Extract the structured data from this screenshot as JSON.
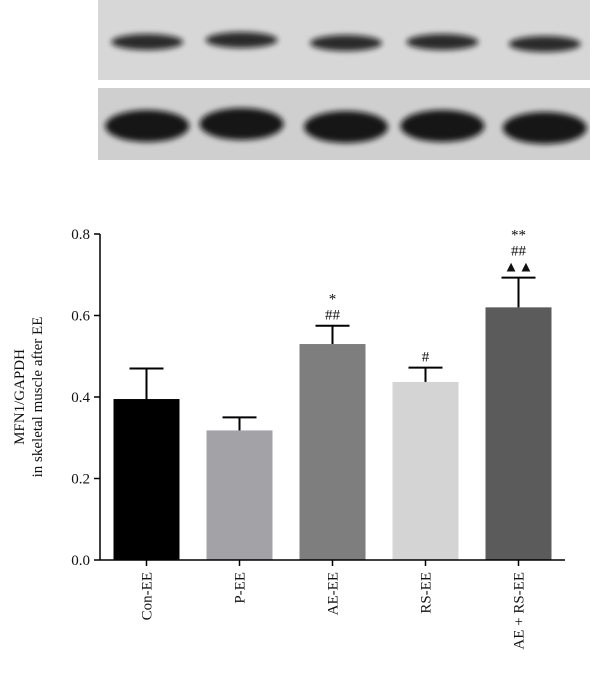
{
  "blot": {
    "top_bands": 5,
    "bottom_bands": 5
  },
  "chart_data": {
    "type": "bar",
    "categories": [
      "Con-EE",
      "P-EE",
      "AE-EE",
      "RS-EE",
      "AE + RS-EE"
    ],
    "values": [
      0.395,
      0.318,
      0.53,
      0.437,
      0.62
    ],
    "errors": [
      0.075,
      0.032,
      0.045,
      0.035,
      0.073
    ],
    "colors": [
      "#000000",
      "#a3a3a7",
      "#7e7e7e",
      "#d4d4d4",
      "#5b5b5b"
    ],
    "annotations": [
      [],
      [],
      [
        "*",
        "##"
      ],
      [
        "#"
      ],
      [
        "**",
        "##",
        "▲▲"
      ]
    ],
    "ylabel_line1": "MFN1/GAPDH",
    "ylabel_line2": "in skeletal muscle after EE",
    "ylim": [
      0,
      0.8
    ],
    "yticks": [
      "0.0",
      "0.2",
      "0.4",
      "0.6",
      "0.8"
    ],
    "ytick_values": [
      0,
      0.2,
      0.4,
      0.6,
      0.8
    ],
    "grid": false
  }
}
